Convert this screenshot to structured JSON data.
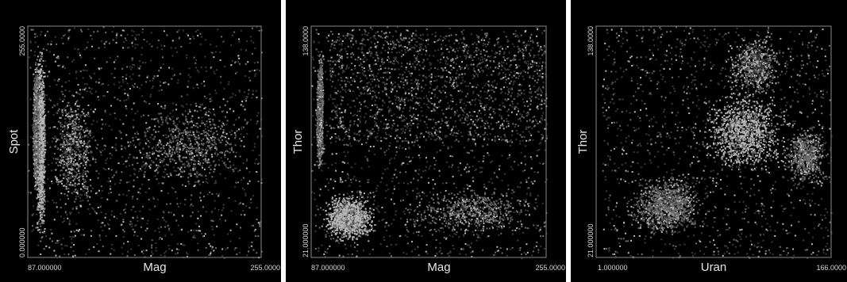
{
  "chart_data": [
    {
      "type": "scatter",
      "xlabel": "Mag",
      "ylabel": "Spot",
      "xlim": [
        87.0,
        255.0
      ],
      "ylim": [
        0.0,
        255.0
      ],
      "x_ticks": [
        "87.000000",
        "255.0000"
      ],
      "y_ticks": [
        "0.000000",
        "255.0000"
      ],
      "grid": false,
      "point_colors": [
        "#3a3a3a",
        "#6e6e6e",
        "#b8b8b8"
      ],
      "clusters": [
        {
          "x": [
            92,
            100
          ],
          "y": [
            10,
            245
          ],
          "density": "high",
          "tone": "light"
        },
        {
          "x": [
            90,
            95
          ],
          "y": [
            60,
            230
          ],
          "density": "high",
          "tone": "mid"
        },
        {
          "x": [
            100,
            140
          ],
          "y": [
            40,
            200
          ],
          "density": "medium",
          "tone": "mixed"
        },
        {
          "x": [
            150,
            255
          ],
          "y": [
            70,
            180
          ],
          "density": "medium",
          "tone": "mid"
        },
        {
          "x": [
            87,
            255
          ],
          "y": [
            0,
            255
          ],
          "density": "sparse",
          "tone": "dark"
        }
      ]
    },
    {
      "type": "scatter",
      "xlabel": "Mag",
      "ylabel": "Thor",
      "xlim": [
        87.0,
        255.0
      ],
      "ylim": [
        21.0,
        138.0
      ],
      "x_ticks": [
        "87.000000",
        "255.0000"
      ],
      "y_ticks": [
        "21.000000",
        "138.0000"
      ],
      "grid": false,
      "point_colors": [
        "#3a3a3a",
        "#6e6e6e",
        "#b8b8b8"
      ],
      "clusters": [
        {
          "x": [
            90,
            96
          ],
          "y": [
            60,
            130
          ],
          "density": "high",
          "tone": "mid"
        },
        {
          "x": [
            92,
            135
          ],
          "y": [
            28,
            55
          ],
          "density": "high",
          "tone": "light"
        },
        {
          "x": [
            150,
            255
          ],
          "y": [
            30,
            60
          ],
          "density": "medium",
          "tone": "mid"
        },
        {
          "x": [
            100,
            255
          ],
          "y": [
            80,
            135
          ],
          "density": "sparse",
          "tone": "dark"
        },
        {
          "x": [
            87,
            255
          ],
          "y": [
            21,
            138
          ],
          "density": "sparse",
          "tone": "dark"
        }
      ]
    },
    {
      "type": "scatter",
      "xlabel": "Uran",
      "ylabel": "Thor",
      "xlim": [
        1.0,
        166.0
      ],
      "ylim": [
        21.0,
        138.0
      ],
      "x_ticks": [
        "1.000000",
        "166.0000"
      ],
      "y_ticks": [
        "21.000000",
        "138.0000"
      ],
      "grid": false,
      "point_colors": [
        "#3a3a3a",
        "#6e6e6e",
        "#b8b8b8"
      ],
      "clusters": [
        {
          "x": [
            20,
            80
          ],
          "y": [
            30,
            65
          ],
          "density": "high",
          "tone": "mid"
        },
        {
          "x": [
            70,
            140
          ],
          "y": [
            60,
            110
          ],
          "density": "high",
          "tone": "light"
        },
        {
          "x": [
            90,
            135
          ],
          "y": [
            100,
            136
          ],
          "density": "medium",
          "tone": "mixed"
        },
        {
          "x": [
            130,
            166
          ],
          "y": [
            55,
            90
          ],
          "density": "medium",
          "tone": "mid"
        },
        {
          "x": [
            5,
            166
          ],
          "y": [
            21,
            138
          ],
          "density": "sparse",
          "tone": "dark"
        }
      ]
    }
  ]
}
